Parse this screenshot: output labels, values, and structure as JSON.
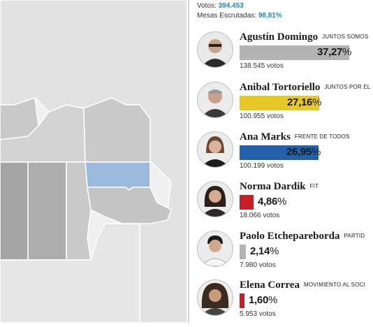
{
  "summary": {
    "votos_label": "Votos:",
    "votos_value": "394.453",
    "mesas_label": "Mesas Escrutadas:",
    "mesas_value": "98,81%"
  },
  "candidates": [
    {
      "name": "Agustín Domingo",
      "party": "JUNTOS SOMOS",
      "pct": "37,27",
      "votes": "138.545 votos",
      "share": 37.27,
      "color": "#b3b3b3"
    },
    {
      "name": "Anibal Tortoriello",
      "party": "JUNTOS POR EL",
      "pct": "27,16",
      "votes": "100.955 votos",
      "share": 27.16,
      "color": "#e6c929"
    },
    {
      "name": "Ana Marks",
      "party": "FRENTE DE TODOS",
      "pct": "26,95",
      "votes": "100.199 votos",
      "share": 26.95,
      "color": "#2561ab"
    },
    {
      "name": "Norma Dardik",
      "party": "FIT",
      "pct": "4,86",
      "votes": "18.066 votos",
      "share": 4.86,
      "color": "#c42026"
    },
    {
      "name": "Paolo Etchepareborda",
      "party": "PARTID",
      "pct": "2,14",
      "votes": "7.980 votos",
      "share": 2.14,
      "color": "#b3b3b3"
    },
    {
      "name": "Elena Correa",
      "party": "MOVIMIENTO AL SOCI",
      "pct": "1,60",
      "votes": "5.953 votos",
      "share": 1.6,
      "color": "#c42026"
    }
  ],
  "map_colors": {
    "background": "#d9d9d9",
    "region_light": "#e2e2e2",
    "region_mid": "#c9c9c9",
    "region_dark": "#a5a5a5",
    "highlight": "#9cb9de",
    "border": "#ffffff"
  },
  "icons": [
    "candidate-photo-icon"
  ]
}
